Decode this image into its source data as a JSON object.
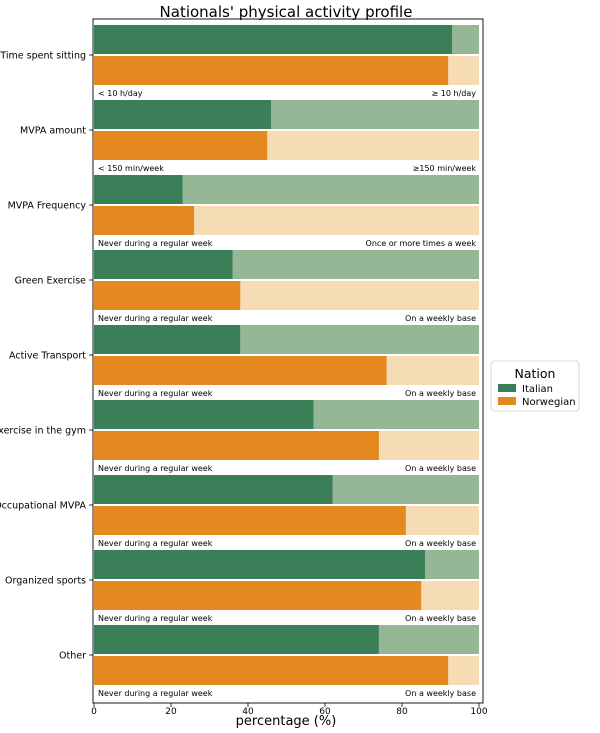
{
  "chart_data": {
    "type": "bar",
    "orientation": "horizontal-stacked",
    "title": "Nationals' physical activity profile",
    "xlabel": "percentage (%)",
    "ylabel": "",
    "xlim": [
      0,
      100
    ],
    "xticks": [
      "0",
      "20",
      "40",
      "60",
      "80",
      "100"
    ],
    "legend": {
      "title": "Nation",
      "placement": "right",
      "entries": [
        "Italian",
        "Norwegian"
      ]
    },
    "colors": {
      "italian_dark": "#3a7f57",
      "italian_light": "#96b796",
      "norwegian_dark": "#e3891f",
      "norwegian_light": "#f6dcb4"
    },
    "categories": [
      {
        "label": "Time spent sitting",
        "italian": 93,
        "norwegian": 92,
        "left_note": "< 10 h/day",
        "right_note": "≥ 10 h/day"
      },
      {
        "label": "MVPA amount",
        "italian": 46,
        "norwegian": 45,
        "left_note": "< 150 min/week",
        "right_note": "≥150 min/week"
      },
      {
        "label": "MVPA Frequency",
        "italian": 23,
        "norwegian": 26,
        "left_note": "Never during a regular week",
        "right_note": "Once or more times a week"
      },
      {
        "label": "Green Exercise",
        "italian": 36,
        "norwegian": 38,
        "left_note": "Never during a regular week",
        "right_note": "On a weekly base"
      },
      {
        "label": "Active Transport",
        "italian": 38,
        "norwegian": 76,
        "left_note": "Never during a regular week",
        "right_note": "On a weekly base"
      },
      {
        "label": "Exercise in the gym",
        "italian": 57,
        "norwegian": 74,
        "left_note": "Never during a regular week",
        "right_note": "On a weekly base"
      },
      {
        "label": "Occupational MVPA",
        "italian": 62,
        "norwegian": 81,
        "left_note": "Never during a regular week",
        "right_note": "On a weekly base"
      },
      {
        "label": "Organized sports",
        "italian": 86,
        "norwegian": 85,
        "left_note": "Never during a regular week",
        "right_note": "On a weekly base"
      },
      {
        "label": "Other",
        "italian": 74,
        "norwegian": 92,
        "left_note": "Never during a regular week",
        "right_note": "On a weekly base"
      }
    ]
  }
}
